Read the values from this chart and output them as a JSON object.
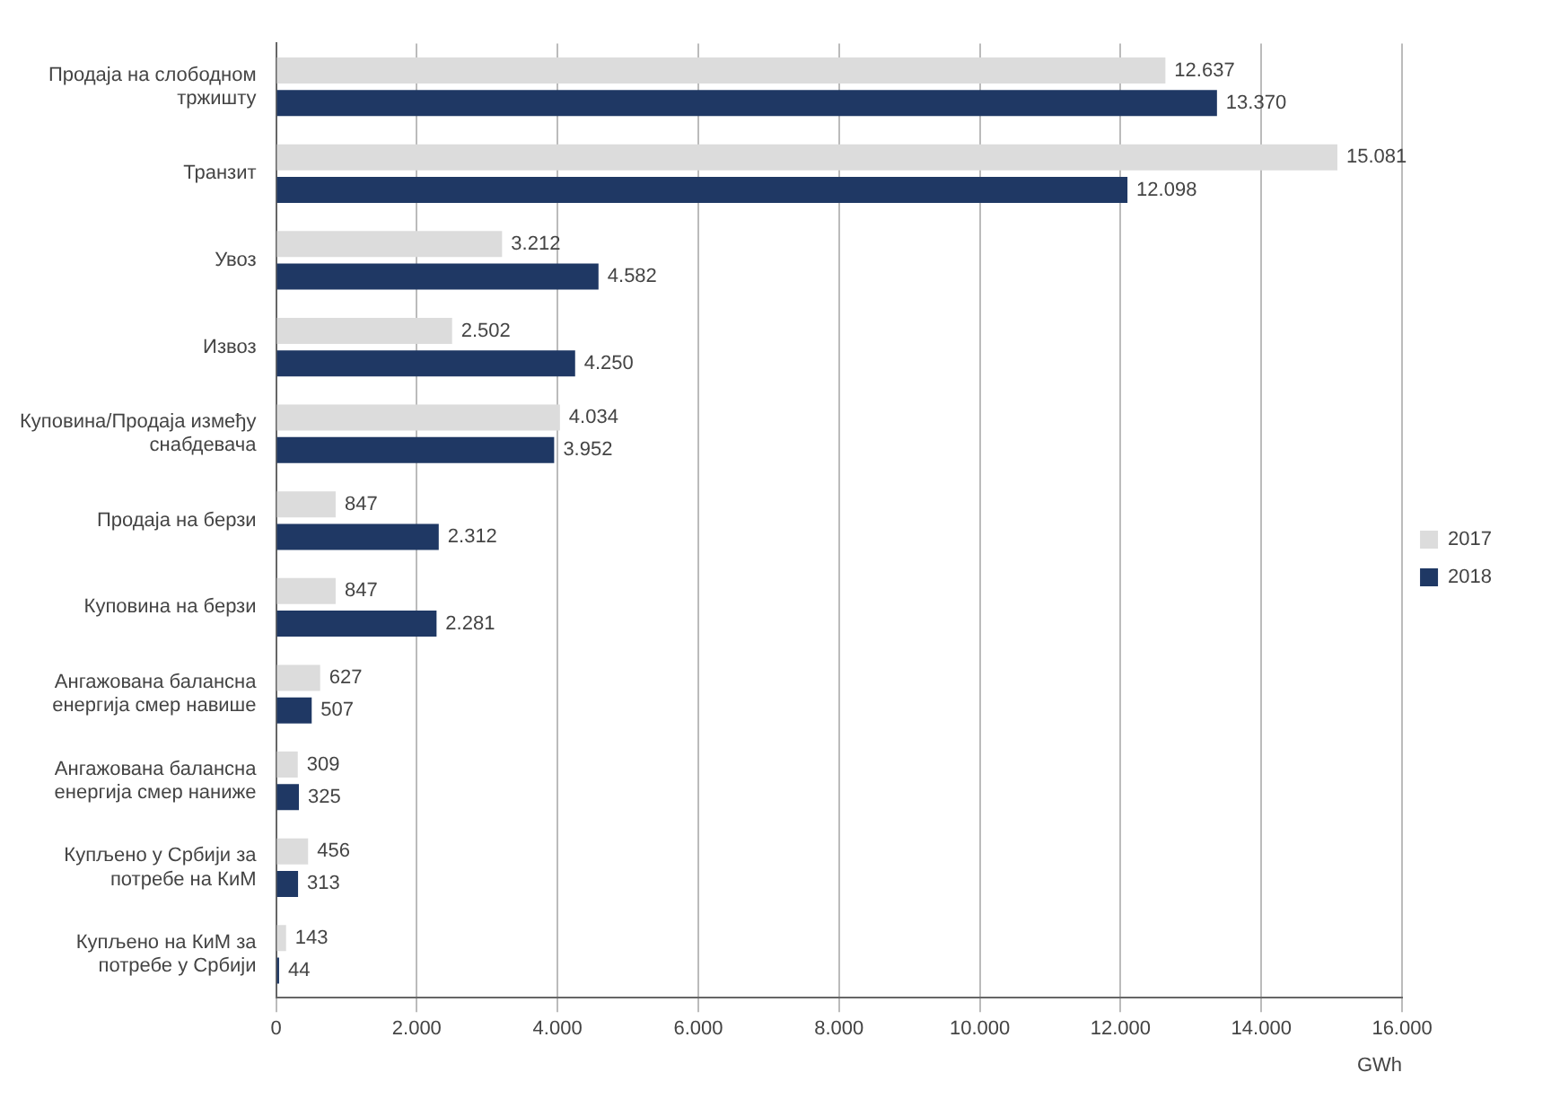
{
  "chart_data": {
    "type": "bar",
    "orientation": "horizontal",
    "xlabel": "GWh",
    "categories": [
      "Продаја на слободном тржишту",
      "Транзит",
      "Увоз",
      "Извоз",
      "Куповина/Продаја између снабдевача",
      "Продаја на берзи",
      "Куповина на берзи",
      "Ангажована балансна енергија смер навише",
      "Ангажована балансна енергија смер наниже",
      "Купљено у Србији за потребе на КиМ",
      "Купљено на КиМ за потребе у Србији"
    ],
    "series": [
      {
        "name": "2017",
        "color": "#dcdcdc",
        "values": [
          12637,
          15081,
          3212,
          2502,
          4034,
          847,
          847,
          627,
          309,
          456,
          143
        ],
        "value_labels": [
          "12.637",
          "15.081",
          "3.212",
          "2.502",
          "4.034",
          "847",
          "847",
          "627",
          "309",
          "456",
          "143"
        ]
      },
      {
        "name": "2018",
        "color": "#1f3864",
        "values": [
          13370,
          12098,
          4582,
          4250,
          3952,
          2312,
          2281,
          507,
          325,
          313,
          44
        ],
        "value_labels": [
          "13.370",
          "12.098",
          "4.582",
          "4.250",
          "3.952",
          "2.312",
          "2.281",
          "507",
          "325",
          "313",
          "44"
        ]
      }
    ],
    "xlim": [
      0,
      16000
    ],
    "xticks": [
      0,
      {
        "value": 2000,
        "label": "2.000"
      },
      {
        "value": 4000,
        "label": "4.000"
      },
      {
        "value": 6000,
        "label": "6.000"
      },
      {
        "value": 8000,
        "label": "8.000"
      },
      {
        "value": 10000,
        "label": "10.000"
      },
      {
        "value": 12000,
        "label": "12.000"
      },
      {
        "value": 14000,
        "label": "14.000"
      },
      {
        "value": 16000,
        "label": "16.000"
      }
    ],
    "grid": "x",
    "legend": "right"
  }
}
